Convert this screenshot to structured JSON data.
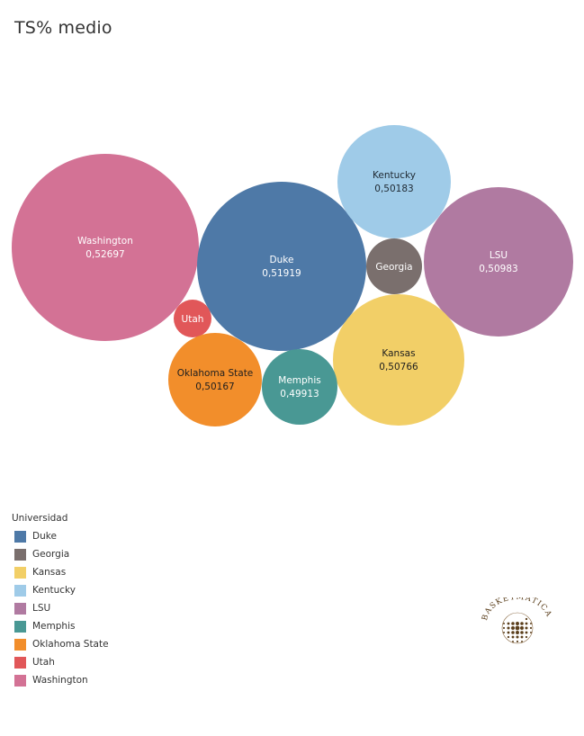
{
  "title": "TS% medio",
  "legend": {
    "title": "Universidad",
    "items": [
      {
        "label": "Duke",
        "color": "#4e79a7"
      },
      {
        "label": "Georgia",
        "color": "#7a6f6d"
      },
      {
        "label": "Kansas",
        "color": "#f2cf67"
      },
      {
        "label": "Kentucky",
        "color": "#9fcbe8"
      },
      {
        "label": "LSU",
        "color": "#b07aa1"
      },
      {
        "label": "Memphis",
        "color": "#499894"
      },
      {
        "label": "Oklahoma State",
        "color": "#f28e2b"
      },
      {
        "label": "Utah",
        "color": "#e15759"
      },
      {
        "label": "Washington",
        "color": "#d37295"
      }
    ]
  },
  "logo": {
    "text": "BASKETMÁTICA"
  },
  "chart_data": {
    "type": "bubble",
    "title": "TS% medio",
    "legend_position": "bottom-left",
    "series": [
      {
        "name": "Washington",
        "value_label": "0,52697",
        "value": 0.52697,
        "color": "#d37295"
      },
      {
        "name": "Duke",
        "value_label": "0,51919",
        "value": 0.51919,
        "color": "#4e79a7"
      },
      {
        "name": "Kentucky",
        "value_label": "0,50183",
        "value": 0.50183,
        "color": "#9fcbe8"
      },
      {
        "name": "Georgia",
        "value_label": "",
        "value": null,
        "color": "#7a6f6d"
      },
      {
        "name": "LSU",
        "value_label": "0,50983",
        "value": 0.50983,
        "color": "#b07aa1"
      },
      {
        "name": "Utah",
        "value_label": "",
        "value": null,
        "color": "#e15759"
      },
      {
        "name": "Kansas",
        "value_label": "0,50766",
        "value": 0.50766,
        "color": "#f2cf67"
      },
      {
        "name": "Oklahoma State",
        "value_label": "0,50167",
        "value": 0.50167,
        "color": "#f28e2b"
      },
      {
        "name": "Memphis",
        "value_label": "0,49913",
        "value": 0.49913,
        "color": "#499894"
      }
    ]
  }
}
